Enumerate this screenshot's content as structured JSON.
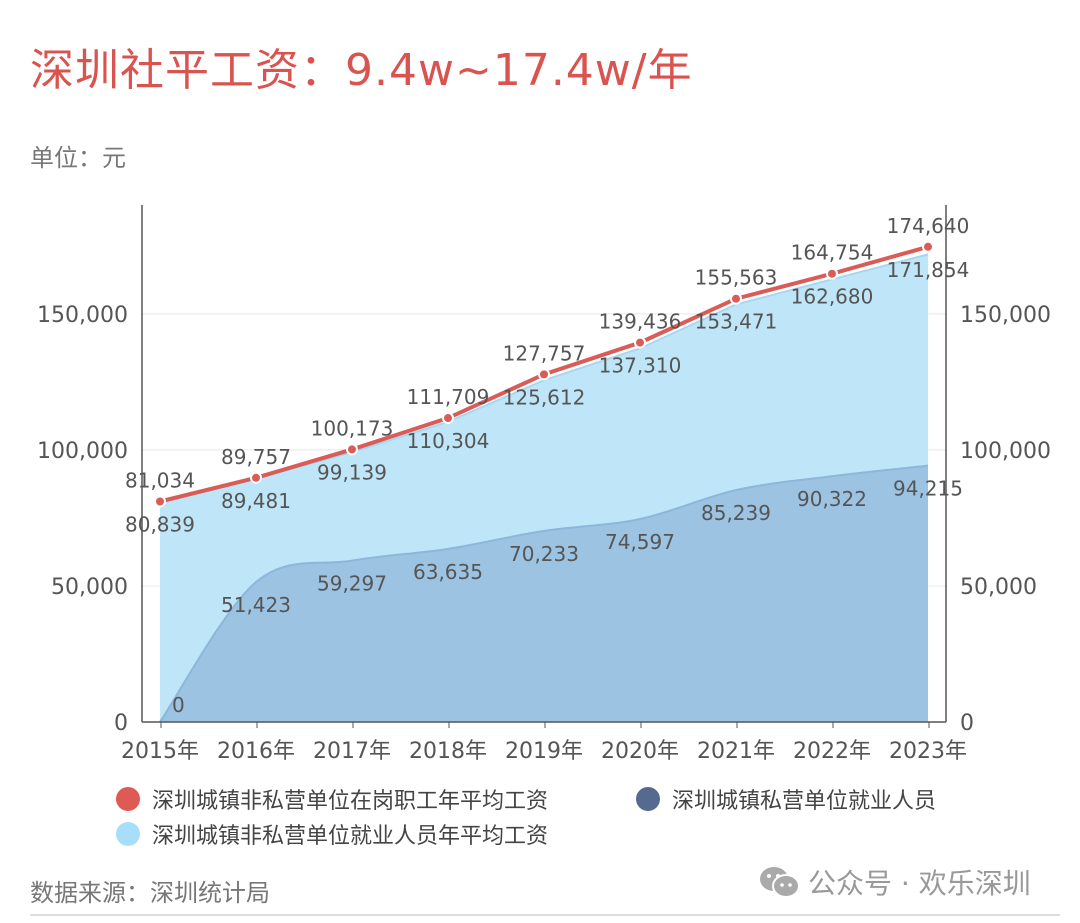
{
  "title": "深圳社平工资：9.4w~17.4w/年",
  "unit_label": "单位：元",
  "source": "数据来源：深圳统计局",
  "watermark": "公众号 · 欢乐深圳",
  "colors": {
    "title": "#d9534f",
    "red": "#d95c57",
    "light": "#bfe6f8",
    "dark": "#9cc3e2",
    "legend_dark": "#56698f",
    "legend_light": "#a8defa"
  },
  "chart_data": {
    "type": "line+area",
    "categories": [
      "2015年",
      "2016年",
      "2017年",
      "2018年",
      "2019年",
      "2020年",
      "2021年",
      "2022年",
      "2023年"
    ],
    "ylim": [
      0,
      190000
    ],
    "yticks": [
      0,
      50000,
      100000,
      150000
    ],
    "ytick_labels": [
      "0",
      "50,000",
      "100,000",
      "150,000"
    ],
    "right_ytick_labels": [
      "0",
      "50,000",
      "100,000",
      "150,000"
    ],
    "grid": true,
    "legend_position": "bottom",
    "series": [
      {
        "name": "深圳城镇非私营单位在岗职工年平均工资",
        "type": "line",
        "color": "#d95c57",
        "values": [
          81034,
          89757,
          100173,
          111709,
          127757,
          139436,
          155563,
          164754,
          174640
        ],
        "labels": [
          "81,034",
          "89,757",
          "100,173",
          "111,709",
          "127,757",
          "139,436",
          "155,563",
          "164,754",
          "174,640"
        ]
      },
      {
        "name": "深圳城镇私营单位就业人员",
        "type": "area",
        "color": "#56698f",
        "values": [
          0,
          51423,
          59297,
          63635,
          70233,
          74597,
          85239,
          90322,
          94215
        ],
        "labels": [
          "0",
          "51,423",
          "59,297",
          "63,635",
          "70,233",
          "74,597",
          "85,239",
          "90,322",
          "94,215"
        ]
      },
      {
        "name": "深圳城镇非私营单位就业人员年平均工资",
        "type": "area",
        "color": "#a8defa",
        "values": [
          80839,
          89481,
          99139,
          110304,
          125612,
          137310,
          153471,
          162680,
          171854
        ],
        "labels": [
          "80,839",
          "89,481",
          "99,139",
          "110,304",
          "125,612",
          "137,310",
          "153,471",
          "162,680",
          "171,854"
        ]
      }
    ]
  }
}
